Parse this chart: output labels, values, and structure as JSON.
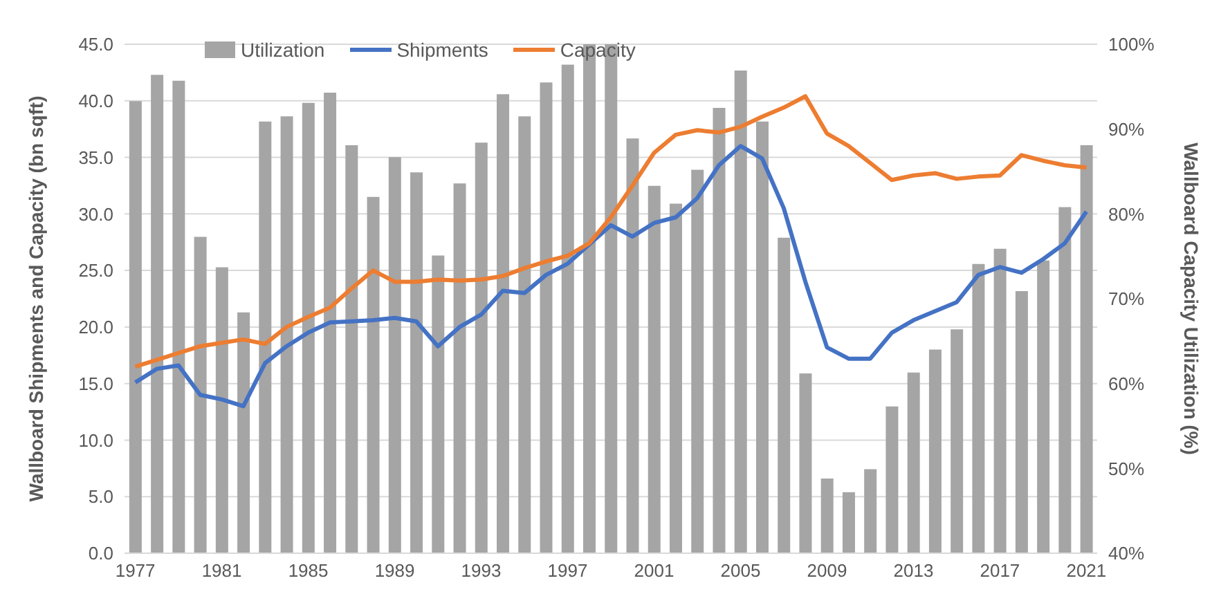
{
  "chart_data": {
    "type": "bar",
    "categories": [
      "1977",
      null,
      null,
      null,
      "1981",
      null,
      null,
      null,
      "1985",
      null,
      null,
      null,
      "1989",
      null,
      null,
      null,
      "1993",
      null,
      null,
      null,
      "1997",
      null,
      null,
      null,
      "2001",
      null,
      null,
      null,
      "2005",
      null,
      null,
      null,
      "2009",
      null,
      null,
      null,
      "2013",
      null,
      null,
      null,
      "2017",
      null,
      null,
      null,
      "2021"
    ],
    "ylabel": "Wallboard Shipments and Capacity (bn sqft)",
    "y2label": "Wallboard Capacity Utilization (%)",
    "ylim": [
      0,
      45
    ],
    "yticks": [
      {
        "value": 0,
        "label": "0.0"
      },
      {
        "value": 5,
        "label": "5.0"
      },
      {
        "value": 10,
        "label": "10.0"
      },
      {
        "value": 15,
        "label": "15.0"
      },
      {
        "value": 20,
        "label": "20.0"
      },
      {
        "value": 25,
        "label": "25.0"
      },
      {
        "value": 30,
        "label": "30.0"
      },
      {
        "value": 35,
        "label": "35.0"
      },
      {
        "value": 40,
        "label": "40.0"
      },
      {
        "value": 45,
        "label": "45.0"
      }
    ],
    "y2lim": [
      40,
      100
    ],
    "y2ticks": [
      {
        "value": 40,
        "label": "40%"
      },
      {
        "value": 50,
        "label": "50%"
      },
      {
        "value": 60,
        "label": "60%"
      },
      {
        "value": 70,
        "label": "70%"
      },
      {
        "value": 80,
        "label": "80%"
      },
      {
        "value": 90,
        "label": "90%"
      },
      {
        "value": 100,
        "label": "100%"
      }
    ],
    "grid": "y",
    "legend": "top",
    "series": [
      {
        "name": "Utilization",
        "type": "bar",
        "axis": "y2",
        "color": "#a5a5a5",
        "values": [
          93.3,
          96.4,
          95.7,
          77.3,
          73.7,
          68.4,
          90.9,
          91.5,
          93.1,
          94.3,
          88.1,
          82,
          86.7,
          84.9,
          75.1,
          83.6,
          88.4,
          94.1,
          91.5,
          95.5,
          97.6,
          100,
          100,
          88.9,
          83.3,
          81.2,
          85.2,
          92.5,
          96.9,
          90.9,
          77.2,
          61.2,
          48.8,
          47.2,
          49.9,
          57.3,
          61.3,
          64,
          66.4,
          74.1,
          75.9,
          70.9,
          74.5,
          80.8,
          88.1
        ]
      },
      {
        "name": "Shipments",
        "type": "line",
        "axis": "y",
        "color": "#4472c4",
        "values": [
          15.1,
          16.3,
          16.6,
          14.0,
          13.6,
          13.0,
          16.8,
          18.3,
          19.5,
          20.4,
          20.5,
          20.6,
          20.8,
          20.5,
          18.3,
          20.0,
          21.1,
          23.2,
          23.0,
          24.6,
          25.6,
          27.3,
          29.0,
          28.0,
          29.2,
          29.7,
          31.4,
          34.3,
          36.0,
          34.9,
          30.5,
          24.0,
          18.2,
          17.2,
          17.2,
          19.5,
          20.6,
          21.4,
          22.2,
          24.6,
          25.3,
          24.8,
          26.0,
          27.4,
          30.2
        ]
      },
      {
        "name": "Capacity",
        "type": "line",
        "axis": "y",
        "color": "#ed7d31",
        "values": [
          16.5,
          17.1,
          17.7,
          18.3,
          18.6,
          18.9,
          18.5,
          20.0,
          20.9,
          21.7,
          23.4,
          25.0,
          24.0,
          24.0,
          24.2,
          24.1,
          24.2,
          24.5,
          25.2,
          25.8,
          26.3,
          27.4,
          29.7,
          32.5,
          35.4,
          37.0,
          37.4,
          37.2,
          37.7,
          38.6,
          39.4,
          40.4,
          37.1,
          36.0,
          34.5,
          33.0,
          33.4,
          33.6,
          33.1,
          33.3,
          33.4,
          35.2,
          34.7,
          34.3,
          34.1
        ]
      }
    ]
  }
}
